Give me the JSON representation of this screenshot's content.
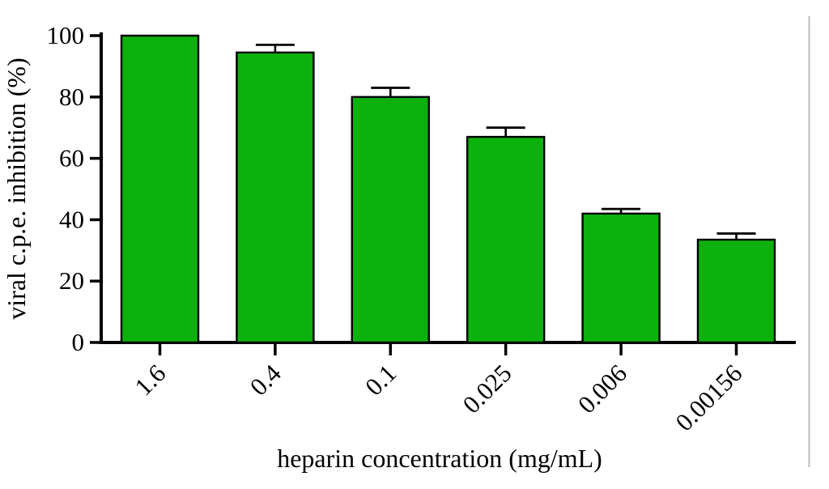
{
  "figure": {
    "background": "#ffffff"
  },
  "chart_data": {
    "type": "bar",
    "title": "",
    "categories": [
      "1.6",
      "0.4",
      "0.1",
      "0.025",
      "0.006",
      "0.00156"
    ],
    "series": [
      {
        "name": "viral c.p.e. inhibition (%)",
        "values": [
          100,
          94.5,
          80,
          67,
          42,
          33.5
        ],
        "errors_plus": [
          0,
          2.5,
          3,
          3,
          1.5,
          2
        ]
      }
    ],
    "xlabel": "heparin concentration (mg/mL)",
    "ylabel": "viral c.p.e. inhibition (%)",
    "yticks": [
      0,
      20,
      40,
      60,
      80,
      100
    ],
    "ylim": [
      0,
      100
    ],
    "grid": false,
    "legend_position": "none",
    "error_bar_style": "upper-cap",
    "colors": {
      "bar_fill": "#0db10d",
      "bar_stroke": "#000000",
      "error_bar": "#000000",
      "axis": "#000000",
      "text": "#000000",
      "page_edge_line": "#bbbbbb"
    }
  }
}
